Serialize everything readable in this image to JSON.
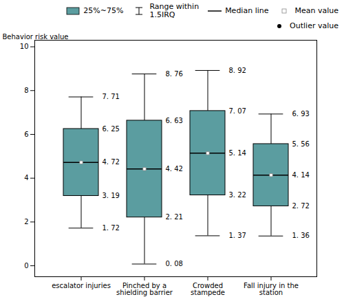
{
  "chart_data": {
    "type": "box",
    "ylabel": "Behavior risk value",
    "categories": [
      "escalator injuries",
      "Pinched by a\nshielding barrier",
      "Crowded\nstampede",
      "Fall injury in the\nstation"
    ],
    "boxes": [
      {
        "whislo": 1.72,
        "q1": 3.19,
        "med": 4.72,
        "q3": 6.25,
        "whishi": 7.71,
        "mean": 4.72
      },
      {
        "whislo": 0.08,
        "q1": 2.21,
        "med": 4.42,
        "q3": 6.63,
        "whishi": 8.76,
        "mean": 4.42
      },
      {
        "whislo": 1.37,
        "q1": 3.22,
        "med": 5.14,
        "q3": 7.07,
        "whishi": 8.92,
        "mean": 5.14
      },
      {
        "whislo": 1.36,
        "q1": 2.72,
        "med": 4.14,
        "q3": 5.56,
        "whishi": 6.93,
        "mean": 4.14
      }
    ],
    "value_labels": [
      [
        "1. 72",
        "3. 19",
        "4. 72",
        "6. 25",
        "7. 71"
      ],
      [
        "0. 08",
        "2. 21",
        "4. 42",
        "6. 63",
        "8. 76"
      ],
      [
        "1. 37",
        "3. 22",
        "5. 14",
        "7. 07",
        "8. 92"
      ],
      [
        "1. 36",
        "2. 72",
        "4. 14",
        "5. 56",
        "6. 93"
      ]
    ],
    "data_labels": true,
    "color": "#5b9da0",
    "ylim": [
      -0.5,
      10.3
    ],
    "yticks": [
      0,
      2,
      4,
      6,
      8,
      10
    ],
    "grid": false,
    "legend": "upper right",
    "legend_entries": [
      "25%~75%",
      "Range within\n1.5IRQ",
      "Median line",
      "Mean value",
      "Outlier value"
    ]
  }
}
